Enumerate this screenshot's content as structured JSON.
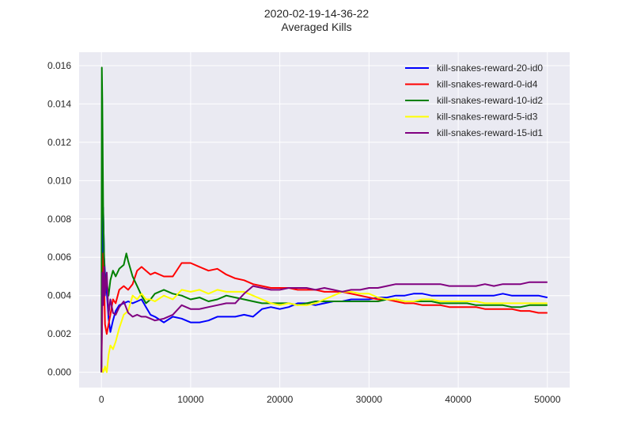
{
  "figure": {
    "title_line1": "2020-02-19-14-36-22",
    "title_line2": "Averaged Kills"
  },
  "chart_data": {
    "type": "line",
    "title": "2020-02-19-14-36-22\nAveraged Kills",
    "xlim": [
      -2500,
      52500
    ],
    "ylim": [
      -0.0008,
      0.0167
    ],
    "xticks": [
      0,
      10000,
      20000,
      30000,
      40000,
      50000
    ],
    "yticks": [
      0.0,
      0.002,
      0.004,
      0.006,
      0.008,
      0.01,
      0.012,
      0.014,
      0.016
    ],
    "xtick_labels": [
      "0",
      "10000",
      "20000",
      "30000",
      "40000",
      "50000"
    ],
    "ytick_labels": [
      "0.000",
      "0.002",
      "0.004",
      "0.006",
      "0.008",
      "0.010",
      "0.012",
      "0.014",
      "0.016"
    ],
    "grid": true,
    "legend_position": "top-right",
    "colors": {
      "background": "#eaeaf2",
      "grid": "#ffffff"
    },
    "series": [
      {
        "name": "kill-snakes-reward-20-id0",
        "color": "#0000ff",
        "x": [
          0,
          100,
          200,
          300,
          400,
          600,
          800,
          1000,
          1300,
          1600,
          2000,
          2500,
          3000,
          3500,
          4000,
          4500,
          5000,
          5500,
          6000,
          7000,
          8000,
          9000,
          10000,
          11000,
          12000,
          13000,
          14000,
          15000,
          16000,
          17000,
          18000,
          19000,
          20000,
          21000,
          22000,
          23000,
          24000,
          25000,
          26000,
          27000,
          28000,
          29000,
          30000,
          31000,
          32000,
          33000,
          34000,
          35000,
          36000,
          37000,
          38000,
          39000,
          40000,
          41000,
          42000,
          43000,
          44000,
          45000,
          46000,
          47000,
          48000,
          49000,
          50000
        ],
        "y": [
          0.0,
          0.0048,
          0.0086,
          0.006,
          0.0052,
          0.0042,
          0.0028,
          0.0021,
          0.0027,
          0.0032,
          0.0035,
          0.0036,
          0.0037,
          0.0036,
          0.0037,
          0.0038,
          0.0034,
          0.003,
          0.0029,
          0.0026,
          0.0029,
          0.0028,
          0.0026,
          0.0026,
          0.0027,
          0.0029,
          0.0029,
          0.0029,
          0.003,
          0.0029,
          0.0033,
          0.0034,
          0.0033,
          0.0034,
          0.0036,
          0.0036,
          0.0035,
          0.0036,
          0.0037,
          0.0037,
          0.0038,
          0.0038,
          0.0038,
          0.0039,
          0.0039,
          0.004,
          0.004,
          0.0041,
          0.0041,
          0.004,
          0.004,
          0.004,
          0.004,
          0.004,
          0.004,
          0.004,
          0.004,
          0.0041,
          0.004,
          0.004,
          0.004,
          0.004,
          0.0039
        ]
      },
      {
        "name": "kill-snakes-reward-0-id4",
        "color": "#ff0000",
        "x": [
          0,
          100,
          200,
          300,
          400,
          600,
          800,
          1000,
          1300,
          1600,
          2000,
          2500,
          3000,
          3500,
          4000,
          4500,
          5000,
          5500,
          6000,
          7000,
          8000,
          9000,
          10000,
          11000,
          12000,
          13000,
          14000,
          15000,
          16000,
          17000,
          18000,
          19000,
          20000,
          21000,
          22000,
          23000,
          24000,
          25000,
          26000,
          27000,
          28000,
          29000,
          30000,
          31000,
          32000,
          33000,
          34000,
          35000,
          36000,
          37000,
          38000,
          39000,
          40000,
          41000,
          42000,
          43000,
          44000,
          45000,
          46000,
          47000,
          48000,
          49000,
          50000
        ],
        "y": [
          0.0,
          0.0035,
          0.0062,
          0.0048,
          0.0025,
          0.002,
          0.0025,
          0.003,
          0.0038,
          0.0036,
          0.0043,
          0.0045,
          0.0043,
          0.0046,
          0.0053,
          0.0055,
          0.0053,
          0.0051,
          0.0052,
          0.005,
          0.005,
          0.0057,
          0.0057,
          0.0055,
          0.0053,
          0.0054,
          0.0051,
          0.0049,
          0.0048,
          0.0046,
          0.0045,
          0.0044,
          0.0044,
          0.0044,
          0.0043,
          0.0043,
          0.0043,
          0.0042,
          0.0042,
          0.0042,
          0.0041,
          0.004,
          0.0039,
          0.0038,
          0.0038,
          0.0037,
          0.0036,
          0.0036,
          0.0035,
          0.0035,
          0.0035,
          0.0034,
          0.0034,
          0.0034,
          0.0034,
          0.0033,
          0.0033,
          0.0033,
          0.0033,
          0.0032,
          0.0032,
          0.0031,
          0.0031
        ]
      },
      {
        "name": "kill-snakes-reward-10-id2",
        "color": "#008000",
        "x": [
          0,
          50,
          100,
          200,
          300,
          400,
          600,
          800,
          1000,
          1300,
          1600,
          2000,
          2500,
          2800,
          3000,
          3500,
          4000,
          4500,
          5000,
          5500,
          6000,
          7000,
          8000,
          9000,
          10000,
          11000,
          12000,
          13000,
          14000,
          15000,
          16000,
          17000,
          18000,
          19000,
          20000,
          21000,
          22000,
          23000,
          24000,
          25000,
          26000,
          27000,
          28000,
          29000,
          30000,
          31000,
          32000,
          33000,
          34000,
          35000,
          36000,
          37000,
          38000,
          39000,
          40000,
          41000,
          42000,
          43000,
          44000,
          45000,
          46000,
          47000,
          48000,
          49000,
          50000
        ],
        "y": [
          0.0,
          0.0159,
          0.0142,
          0.0085,
          0.006,
          0.0045,
          0.0047,
          0.004,
          0.0048,
          0.0053,
          0.005,
          0.0054,
          0.0056,
          0.0062,
          0.0058,
          0.005,
          0.0045,
          0.004,
          0.0036,
          0.0038,
          0.0041,
          0.0043,
          0.0041,
          0.004,
          0.0038,
          0.0039,
          0.0037,
          0.0038,
          0.004,
          0.0039,
          0.0038,
          0.0037,
          0.0036,
          0.0036,
          0.0036,
          0.0036,
          0.0035,
          0.0036,
          0.0037,
          0.0037,
          0.0037,
          0.0037,
          0.0037,
          0.0037,
          0.0037,
          0.0037,
          0.0038,
          0.0038,
          0.0037,
          0.0037,
          0.0037,
          0.0037,
          0.0036,
          0.0036,
          0.0036,
          0.0036,
          0.0035,
          0.0035,
          0.0035,
          0.0035,
          0.0034,
          0.0034,
          0.0035,
          0.0035,
          0.0035
        ]
      },
      {
        "name": "kill-snakes-reward-5-id3",
        "color": "#ffff00",
        "x": [
          0,
          100,
          200,
          300,
          400,
          600,
          800,
          1000,
          1300,
          1600,
          2000,
          2500,
          3000,
          3500,
          4000,
          4500,
          5000,
          5500,
          6000,
          7000,
          8000,
          9000,
          10000,
          11000,
          12000,
          13000,
          14000,
          15000,
          16000,
          17000,
          18000,
          19000,
          20000,
          21000,
          22000,
          23000,
          24000,
          25000,
          26000,
          27000,
          28000,
          29000,
          30000,
          31000,
          32000,
          33000,
          34000,
          35000,
          36000,
          37000,
          38000,
          39000,
          40000,
          41000,
          42000,
          43000,
          44000,
          45000,
          46000,
          47000,
          48000,
          49000,
          50000
        ],
        "y": [
          0.0,
          0.0002,
          0.0,
          0.0001,
          0.0003,
          0.0,
          0.0009,
          0.0014,
          0.0012,
          0.0016,
          0.0023,
          0.003,
          0.0032,
          0.004,
          0.0038,
          0.0041,
          0.0038,
          0.0038,
          0.0037,
          0.004,
          0.0038,
          0.0043,
          0.0042,
          0.0043,
          0.0041,
          0.0043,
          0.0042,
          0.0042,
          0.0042,
          0.004,
          0.0038,
          0.0036,
          0.0035,
          0.0036,
          0.0035,
          0.0035,
          0.0036,
          0.0038,
          0.004,
          0.0042,
          0.0042,
          0.0041,
          0.0041,
          0.0039,
          0.0038,
          0.0038,
          0.0037,
          0.0037,
          0.0038,
          0.0038,
          0.0037,
          0.0037,
          0.0037,
          0.0037,
          0.0037,
          0.0036,
          0.0036,
          0.0036,
          0.0036,
          0.0036,
          0.0036,
          0.0036,
          0.0036
        ]
      },
      {
        "name": "kill-snakes-reward-15-id1",
        "color": "#800080",
        "x": [
          0,
          100,
          200,
          300,
          400,
          600,
          800,
          1000,
          1300,
          1600,
          2000,
          2500,
          3000,
          3500,
          4000,
          4500,
          5000,
          5500,
          6000,
          7000,
          8000,
          9000,
          10000,
          11000,
          12000,
          13000,
          14000,
          15000,
          16000,
          17000,
          18000,
          19000,
          20000,
          21000,
          22000,
          23000,
          24000,
          25000,
          26000,
          27000,
          28000,
          29000,
          30000,
          31000,
          32000,
          33000,
          34000,
          35000,
          36000,
          37000,
          38000,
          39000,
          40000,
          41000,
          42000,
          43000,
          44000,
          45000,
          46000,
          47000,
          48000,
          49000,
          50000
        ],
        "y": [
          0.0,
          0.0052,
          0.0035,
          0.0055,
          0.004,
          0.0052,
          0.003,
          0.0038,
          0.0031,
          0.003,
          0.0034,
          0.0037,
          0.0031,
          0.0029,
          0.003,
          0.0029,
          0.0029,
          0.0028,
          0.0027,
          0.0028,
          0.003,
          0.0035,
          0.0033,
          0.0033,
          0.0034,
          0.0035,
          0.0036,
          0.0036,
          0.0041,
          0.0045,
          0.0044,
          0.0043,
          0.0043,
          0.0044,
          0.0044,
          0.0044,
          0.0043,
          0.0044,
          0.0043,
          0.0042,
          0.0043,
          0.0043,
          0.0044,
          0.0044,
          0.0045,
          0.0046,
          0.0046,
          0.0046,
          0.0046,
          0.0046,
          0.0046,
          0.0045,
          0.0045,
          0.0045,
          0.0045,
          0.0046,
          0.0045,
          0.0046,
          0.0046,
          0.0046,
          0.0047,
          0.0047,
          0.0047
        ]
      }
    ]
  }
}
